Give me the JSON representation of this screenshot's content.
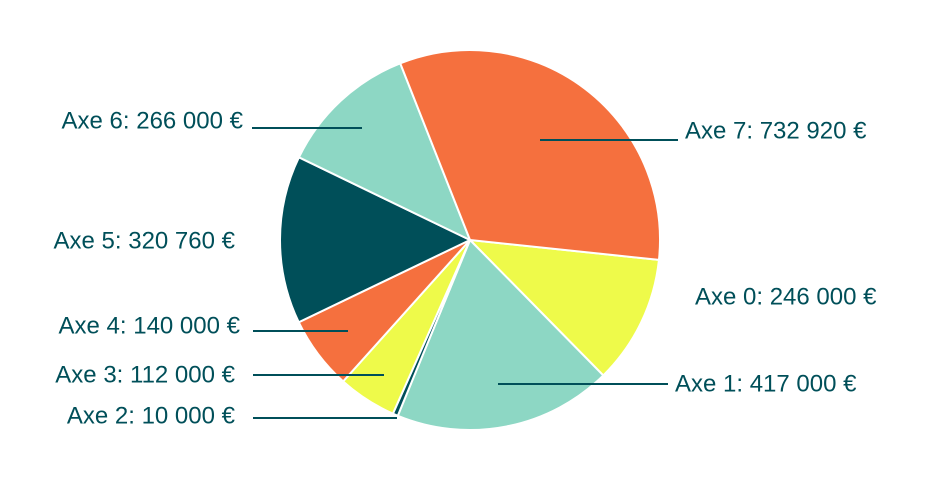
{
  "chart_data": {
    "type": "pie",
    "values": [
      246000,
      417000,
      10000,
      112000,
      140000,
      320760,
      266000,
      732920
    ],
    "value_labels": [
      "Axe 0: 246 000 €",
      "Axe 1: 417 000 €",
      "Axe 2: 10 000 €",
      "Axe 3: 112 000 €",
      "Axe 4: 140 000 €",
      "Axe 5: 320 760 €",
      "Axe 6: 266 000 €",
      "Axe 7: 732 920 €"
    ],
    "colors": [
      "#eefa4a",
      "#8dd7c4",
      "#004f59",
      "#eefa4a",
      "#f5703e",
      "#004f59",
      "#8dd7c4",
      "#f5703e"
    ]
  }
}
